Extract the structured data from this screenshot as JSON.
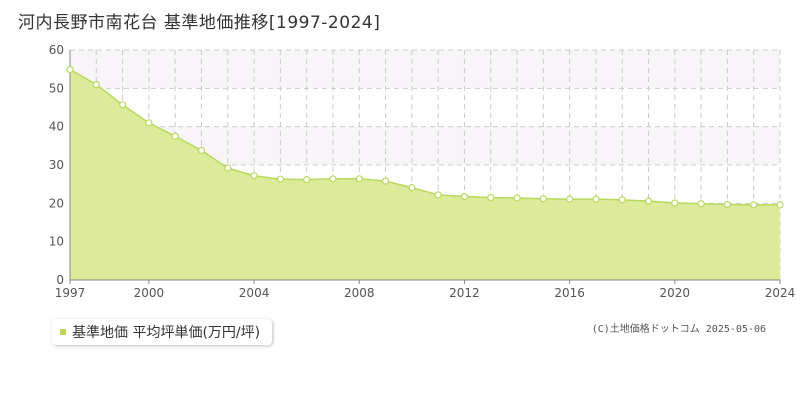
{
  "title": "河内長野市南花台 基準地価推移[1997-2024]",
  "legend_label": "基準地価 平均坪単価(万円/坪)",
  "credit": "(C)土地価格ドットコム 2025-05-06",
  "colors": {
    "fill": "#dcea9a",
    "line": "#b9d95c",
    "marker_stroke": "#b9d95c",
    "band": "#f7f5f7",
    "grid": "#cccccc"
  },
  "chart_data": {
    "type": "area",
    "title": "河内長野市南花台 基準地価推移[1997-2024]",
    "xlabel": "",
    "ylabel": "",
    "xlim": [
      1997,
      2024
    ],
    "ylim": [
      0,
      60
    ],
    "x_ticks": [
      1997,
      2000,
      2004,
      2008,
      2012,
      2016,
      2020,
      2024
    ],
    "y_ticks": [
      0,
      10,
      20,
      30,
      40,
      50,
      60
    ],
    "grid": true,
    "legend_position": "bottom-left",
    "series": [
      {
        "name": "基準地価 平均坪単価(万円/坪)",
        "x": [
          1997,
          1998,
          1999,
          2000,
          2001,
          2002,
          2003,
          2004,
          2005,
          2006,
          2007,
          2008,
          2009,
          2010,
          2011,
          2012,
          2013,
          2014,
          2015,
          2016,
          2017,
          2018,
          2019,
          2020,
          2021,
          2022,
          2023,
          2024
        ],
        "y": [
          54.9,
          51.0,
          45.7,
          41.0,
          37.5,
          33.8,
          29.2,
          27.2,
          26.3,
          26.2,
          26.4,
          26.4,
          25.8,
          24.1,
          22.2,
          21.8,
          21.5,
          21.4,
          21.2,
          21.1,
          21.1,
          20.9,
          20.6,
          20.1,
          19.9,
          19.7,
          19.6,
          19.6
        ]
      }
    ]
  }
}
